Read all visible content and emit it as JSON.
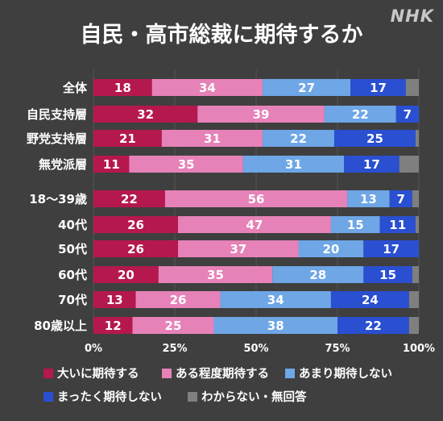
{
  "logo": "NHK",
  "chart_data": {
    "type": "bar",
    "orientation": "horizontal",
    "stacked": true,
    "title": "自民・高市総裁に期待するか",
    "categories": [
      "全体",
      "自民支持層",
      "野党支持層",
      "無党派層",
      "18〜39歳",
      "40代",
      "50代",
      "60代",
      "70代",
      "80歳以上"
    ],
    "series": [
      {
        "name": "大いに期待する",
        "color": "#b5184e",
        "values": [
          18,
          32,
          21,
          11,
          22,
          26,
          26,
          20,
          13,
          12
        ]
      },
      {
        "name": "ある程度期待する",
        "color": "#e682b8",
        "values": [
          34,
          39,
          31,
          35,
          56,
          47,
          37,
          35,
          26,
          25
        ]
      },
      {
        "name": "あまり期待しない",
        "color": "#6ea6e6",
        "values": [
          27,
          22,
          22,
          31,
          13,
          15,
          20,
          28,
          34,
          38
        ]
      },
      {
        "name": "まったく期待しない",
        "color": "#2a4fd0",
        "values": [
          17,
          7,
          25,
          17,
          7,
          11,
          17,
          15,
          24,
          22
        ]
      },
      {
        "name": "わからない・無回答",
        "color": "#7f7f7f",
        "values": [
          4,
          0,
          1,
          6,
          2,
          1,
          0,
          2,
          3,
          3
        ]
      }
    ],
    "xlim": [
      0,
      100
    ],
    "xticks": [
      "0%",
      "25%",
      "50%",
      "75%",
      "100%"
    ],
    "grid": true,
    "legend_position": "bottom"
  }
}
